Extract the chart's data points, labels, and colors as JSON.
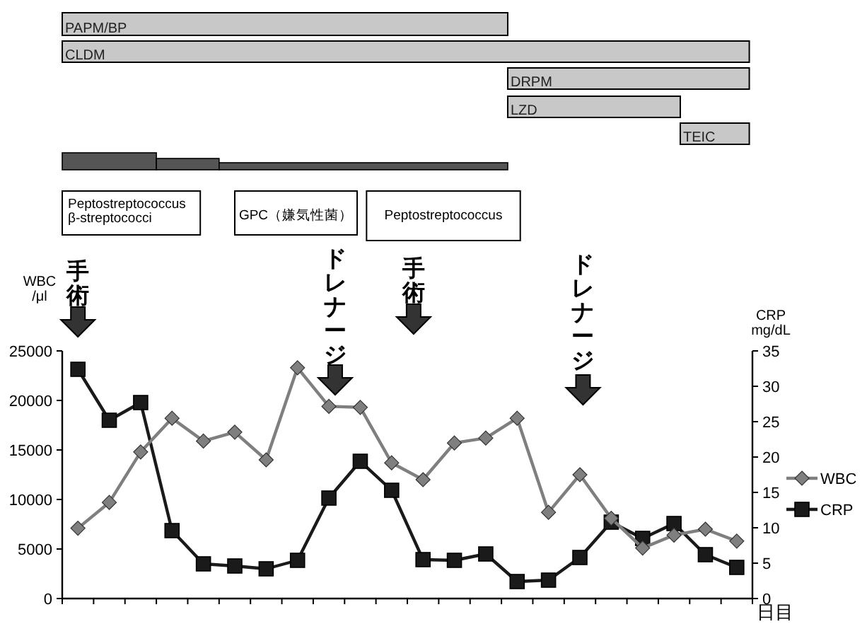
{
  "chart_data": {
    "type": "line",
    "categories": [
      null,
      null,
      null,
      null,
      null,
      null,
      null,
      null,
      null,
      null,
      null,
      null,
      null,
      null,
      null,
      null,
      null,
      null,
      null,
      null,
      null,
      null
    ],
    "xlabel": "日目",
    "ylabel": "WBC\n/μl",
    "y2label": "CRP\nmg/dL",
    "ylim": [
      0,
      25000
    ],
    "yticks": [
      0,
      5000,
      10000,
      15000,
      20000,
      25000
    ],
    "y2lim": [
      0,
      35
    ],
    "y2ticks": [
      0,
      5,
      10,
      15,
      20,
      25,
      30,
      35
    ],
    "legend": "right",
    "grid": false,
    "series": [
      {
        "name": "WBC",
        "color": "#7f7f7f",
        "marker": "diamond",
        "values": [
          7100,
          9700,
          14800,
          18200,
          15900,
          16800,
          14000,
          23300,
          19400,
          19300,
          13700,
          12000,
          15700,
          16200,
          18200,
          8700,
          12500,
          8100,
          5100,
          6400,
          7000,
          5800
        ]
      },
      {
        "name": "CRP",
        "color": "#1a1a1a",
        "marker": "square",
        "axis": "y2",
        "values": [
          32.4,
          25.2,
          27.7,
          9.6,
          4.9,
          4.6,
          4.2,
          5.4,
          14.2,
          19.4,
          15.3,
          5.5,
          5.4,
          6.3,
          2.4,
          2.6,
          5.8,
          10.8,
          8.5,
          10.6,
          6.2,
          4.4
        ]
      }
    ],
    "annotations": [
      "PAPM/BP",
      "CLDM",
      "DRPM",
      "LZD",
      "TEIC",
      "Peptostreptococcus\nβ-streptococci",
      "GPC（嫌気性菌）",
      "Peptostreptococcus",
      "手術",
      "ドレナージ",
      "手術",
      "ドレナージ"
    ]
  }
}
